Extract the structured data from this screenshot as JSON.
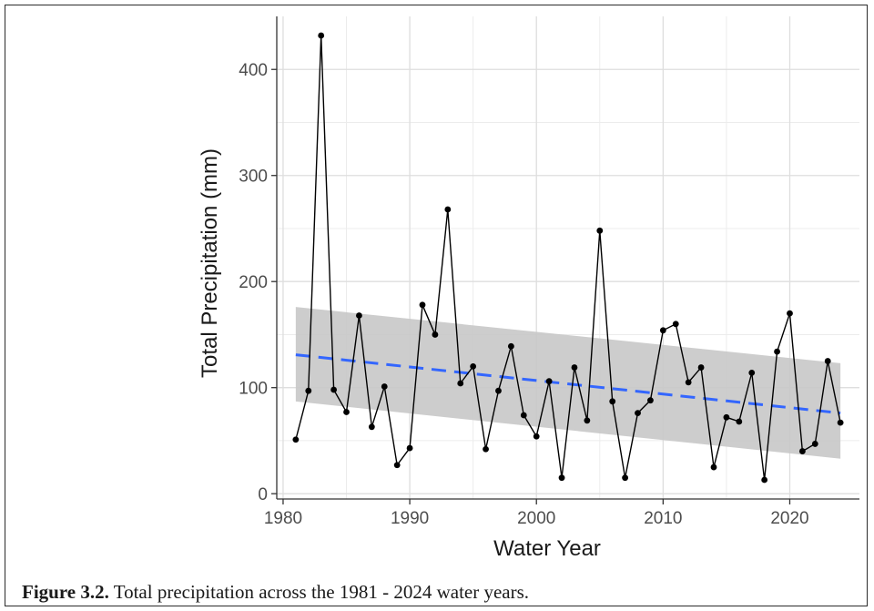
{
  "chart_data": {
    "type": "line",
    "xlabel": "Water Year",
    "ylabel": "Total Precipitation (mm)",
    "xlim": [
      1979.5,
      2025.5
    ],
    "ylim": [
      -5,
      450
    ],
    "x_ticks": [
      1980,
      1990,
      2000,
      2010,
      2020
    ],
    "y_ticks": [
      0,
      100,
      200,
      300,
      400
    ],
    "grid": true,
    "legend": "none",
    "series": [
      {
        "kind": "points-line",
        "color": "#000000",
        "x": [
          1981,
          1982,
          1983,
          1984,
          1985,
          1986,
          1987,
          1988,
          1989,
          1990,
          1991,
          1992,
          1993,
          1994,
          1995,
          1996,
          1997,
          1998,
          1999,
          2000,
          2001,
          2002,
          2003,
          2004,
          2005,
          2006,
          2007,
          2008,
          2009,
          2010,
          2011,
          2012,
          2013,
          2014,
          2015,
          2016,
          2017,
          2018,
          2019,
          2020,
          2021,
          2022,
          2023,
          2024
        ],
        "y": [
          51,
          97,
          432,
          98,
          77,
          168,
          63,
          101,
          27,
          43,
          178,
          150,
          268,
          104,
          120,
          42,
          97,
          139,
          74,
          54,
          106,
          15,
          119,
          69,
          248,
          87,
          15,
          76,
          88,
          154,
          160,
          105,
          119,
          25,
          72,
          68,
          114,
          13,
          134,
          170,
          40,
          47,
          125,
          67
        ]
      },
      {
        "kind": "trend",
        "style": "dashed",
        "color": "#3366ff",
        "x": [
          1981,
          2024
        ],
        "y": [
          131,
          76
        ]
      },
      {
        "kind": "confidence-band",
        "color": "#c8c8c8",
        "x": [
          1981,
          2024
        ],
        "upper": [
          176,
          123
        ],
        "lower": [
          87,
          33
        ]
      }
    ]
  },
  "caption": {
    "label": "Figure 3.2.",
    "text": " Total precipitation across the 1981 - 2024 water years."
  }
}
